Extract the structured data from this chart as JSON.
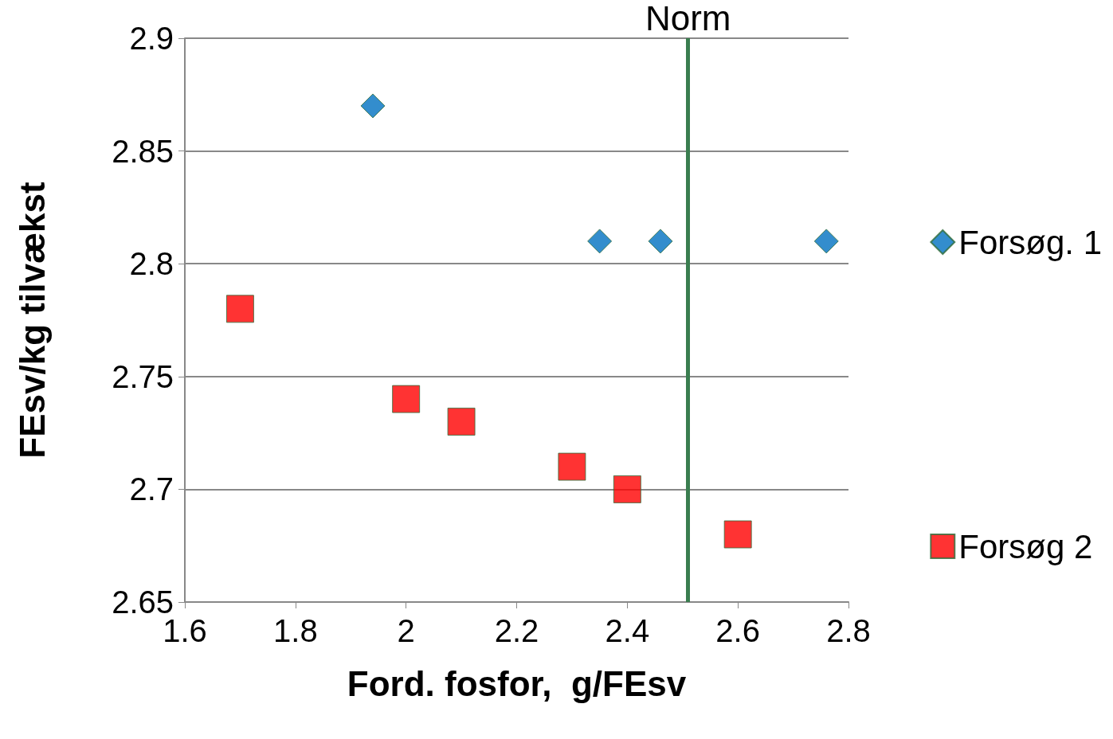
{
  "chart_data": {
    "type": "scatter",
    "xlabel": "Ford. fosfor,  g/FEsv",
    "ylabel": "FEsv/kg tilvækst",
    "xlim": [
      1.6,
      2.8
    ],
    "xticks": [
      1.6,
      1.8,
      2,
      2.2,
      2.4,
      2.6,
      2.8
    ],
    "ylim": [
      2.65,
      2.9
    ],
    "yticks": [
      2.65,
      2.7,
      2.75,
      2.8,
      2.85,
      2.9
    ],
    "grid": "y",
    "legend": "right",
    "series": [
      {
        "name": "Forsøg. 1",
        "color": "#0070c0",
        "marker": "diamond",
        "x": [
          1.94,
          2.35,
          2.46,
          2.76
        ],
        "values": [
          2.87,
          2.81,
          2.81,
          2.81
        ]
      },
      {
        "name": "Forsøg 2",
        "color": "#ff0000",
        "marker": "square",
        "x": [
          1.7,
          2.0,
          2.1,
          2.3,
          2.4,
          2.6
        ],
        "values": [
          2.78,
          2.74,
          2.73,
          2.71,
          2.7,
          2.68
        ]
      }
    ],
    "ref_lines": [
      {
        "axis": "x",
        "value": 2.51,
        "label": "Norm",
        "color": "#3a7d4f"
      }
    ]
  }
}
